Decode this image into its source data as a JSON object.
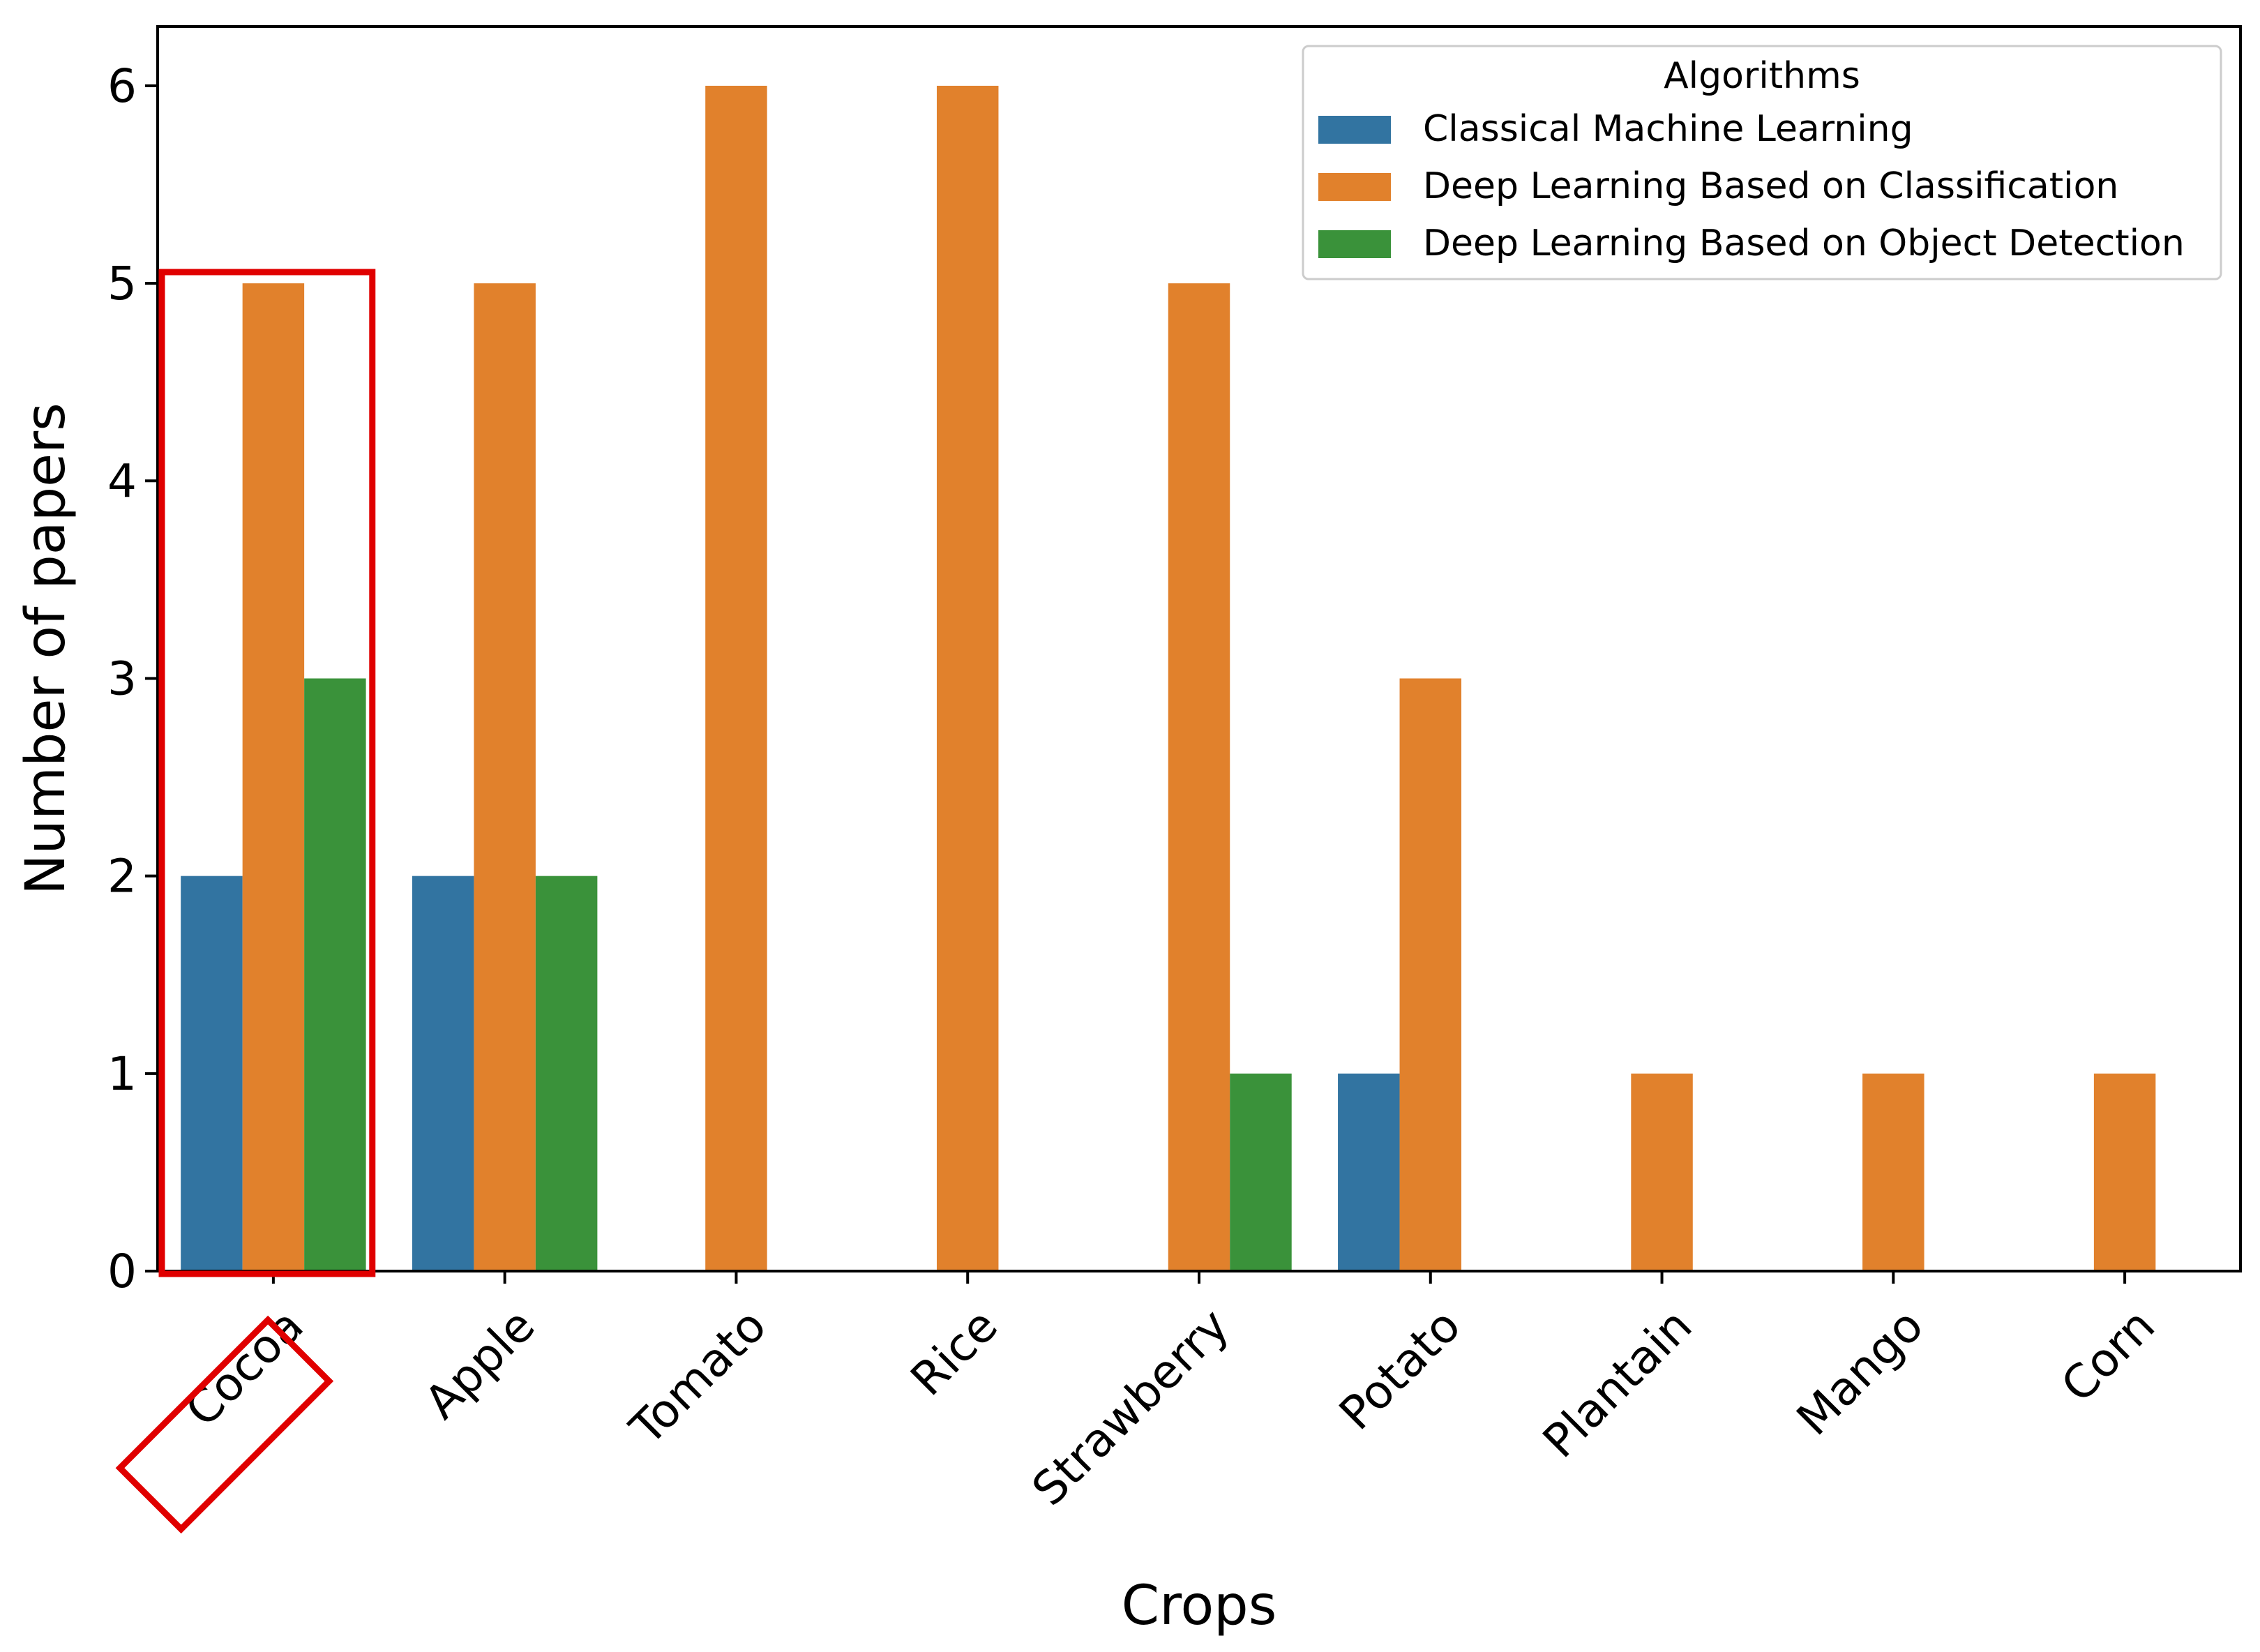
{
  "chart_data": {
    "type": "bar",
    "title": "",
    "xlabel": "Crops",
    "ylabel": "Number of papers",
    "ylim": [
      0,
      6.3
    ],
    "yticks": [
      0,
      1,
      2,
      3,
      4,
      5,
      6
    ],
    "categories": [
      "Cocoa",
      "Apple",
      "Tomato",
      "Rice",
      "Strawberry",
      "Potato",
      "Plantain",
      "Mango",
      "Corn"
    ],
    "series": [
      {
        "name": "Classical Machine Learning",
        "color": "#3274a1",
        "values": [
          2,
          2,
          0,
          0,
          0,
          1,
          0,
          0,
          0
        ]
      },
      {
        "name": "Deep Learning Based on Classification",
        "color": "#e1812c",
        "values": [
          5,
          5,
          6,
          6,
          5,
          3,
          1,
          1,
          1
        ]
      },
      {
        "name": "Deep Learning Based on Object Detection",
        "color": "#3a923a",
        "values": [
          3,
          2,
          0,
          0,
          1,
          0,
          0,
          0,
          0
        ]
      }
    ],
    "legend": {
      "title": "Algorithms",
      "position": "top-right"
    },
    "highlight": {
      "category": "Cocoa",
      "color": "#e00000"
    },
    "grid": false
  }
}
